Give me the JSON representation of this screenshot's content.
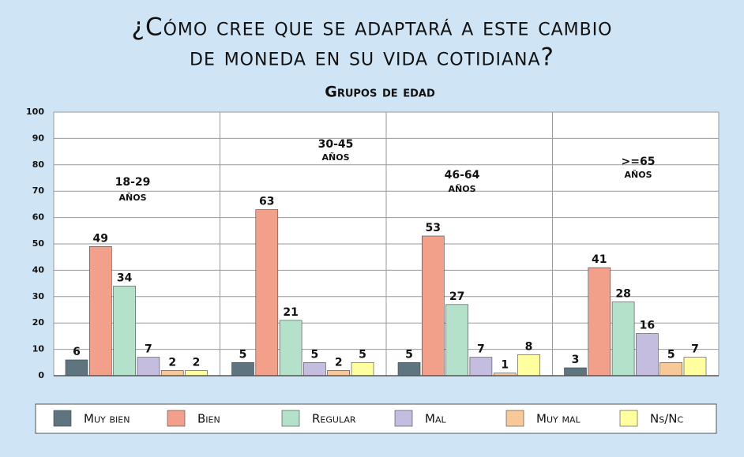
{
  "chart_data": {
    "type": "bar",
    "title": [
      "¿Cómo cree que se adaptará a este cambio",
      "de moneda en su vida cotidiana?"
    ],
    "subtitle": "Grupos de edad",
    "categories": [
      "18-29",
      "30-45",
      "46-64",
      ">=65"
    ],
    "category_sublabels": [
      "AÑOS",
      "AÑOS",
      "AÑOS",
      "AÑOS"
    ],
    "series": [
      {
        "name": "Muy bien",
        "color": "#5e7580",
        "values": [
          6,
          5,
          5,
          3
        ]
      },
      {
        "name": "Bien",
        "color": "#f2a08a",
        "values": [
          49,
          63,
          53,
          41
        ]
      },
      {
        "name": "Regular",
        "color": "#b4e1ca",
        "values": [
          34,
          21,
          27,
          28
        ]
      },
      {
        "name": "Mal",
        "color": "#c4bde0",
        "values": [
          7,
          5,
          7,
          16
        ]
      },
      {
        "name": "Muy mal",
        "color": "#f8c898",
        "values": [
          2,
          2,
          1,
          5
        ]
      },
      {
        "name": "Ns/Nc",
        "color": "#ffffa0",
        "values": [
          2,
          5,
          8,
          7
        ]
      }
    ],
    "ylim": [
      0,
      100
    ],
    "yticks": [
      0,
      10,
      20,
      30,
      40,
      50,
      60,
      70,
      80,
      90,
      100
    ],
    "grid": true,
    "legend": "bottom"
  }
}
